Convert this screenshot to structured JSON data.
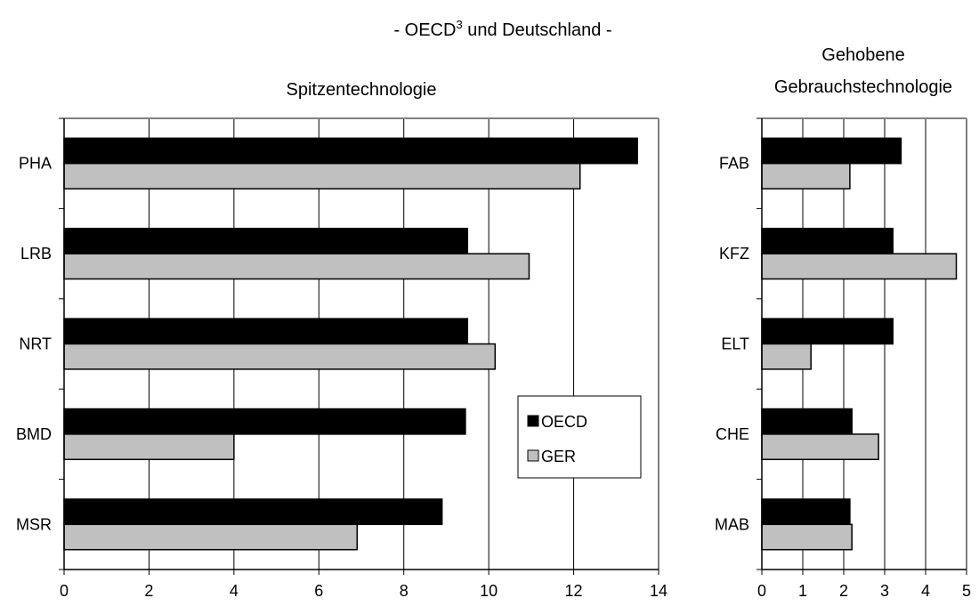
{
  "header": {
    "title_prefix": "- OECD",
    "title_sup": "3",
    "title_suffix": " und Deutschland -"
  },
  "legend": {
    "placement": "inside-right of left chart",
    "entries": [
      {
        "label": "OECD",
        "color": "#000000"
      },
      {
        "label": "GER",
        "color": "#c0c0c0"
      }
    ]
  },
  "chart_data": [
    {
      "type": "bar",
      "orientation": "horizontal",
      "title": "Spitzentechnologie",
      "categories": [
        "PHA",
        "LRB",
        "NRT",
        "BMD",
        "MSR"
      ],
      "series": [
        {
          "name": "OECD",
          "color": "#000000",
          "values": [
            13.5,
            9.5,
            9.5,
            9.45,
            8.9
          ]
        },
        {
          "name": "GER",
          "color": "#c0c0c0",
          "values": [
            12.15,
            10.95,
            10.15,
            4.0,
            6.9
          ]
        }
      ],
      "xlim": [
        0,
        14
      ],
      "xticks": [
        "0",
        "2",
        "4",
        "6",
        "8",
        "10",
        "12",
        "14"
      ],
      "grid": "vertical"
    },
    {
      "type": "bar",
      "orientation": "horizontal",
      "title_lines": [
        "Gehobene",
        "Gebrauchstechnologie"
      ],
      "categories": [
        "FAB",
        "KFZ",
        "ELT",
        "CHE",
        "MAB"
      ],
      "series": [
        {
          "name": "OECD",
          "color": "#000000",
          "values": [
            3.4,
            3.2,
            3.2,
            2.2,
            2.15
          ]
        },
        {
          "name": "GER",
          "color": "#c0c0c0",
          "values": [
            2.15,
            4.75,
            1.2,
            2.85,
            2.2
          ]
        }
      ],
      "xlim": [
        0,
        5
      ],
      "xticks": [
        "0",
        "1",
        "2",
        "3",
        "4",
        "5"
      ],
      "grid": "vertical"
    }
  ]
}
